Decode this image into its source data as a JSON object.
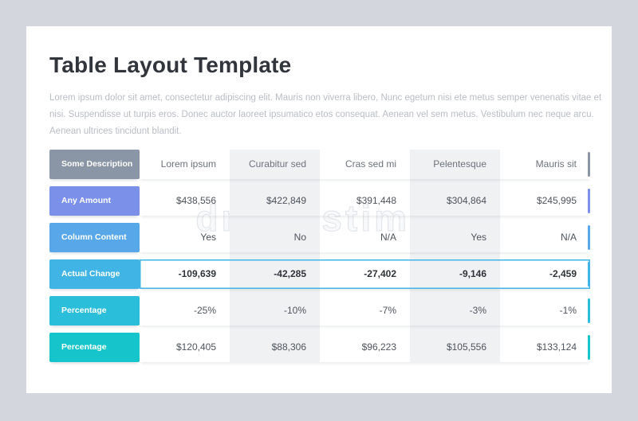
{
  "page": {
    "title": "Table Layout Template",
    "subtitle": "Lorem ipsum dolor sit amet, consectetur adipiscing elit. Mauris non viverra libero, Nunc egetum nisi ete metus semper venenatis vitae et nisi. Suspendisse ut turpis eros. Donec auctor laoreet ipsumatico etos consequat. Aenean vel sem metus. Vestibulum nec neque arcu. Aenean ultrices tincidunt blandit."
  },
  "watermark": {
    "text": "dreamstime",
    "registered": "®"
  },
  "colors": {
    "background": "#d3d6dd",
    "card": "#ffffff",
    "column_stripe": "#f0f1f3",
    "title_text": "#32363c",
    "subtitle_text": "#b9bdc4",
    "cell_text": "#4d535b"
  },
  "table": {
    "header": {
      "label": "Some Description",
      "color": "#8a95a5",
      "columns": [
        "Lorem ipsum",
        "Curabitur sed",
        "Cras sed mi",
        "Pelentesque",
        "Mauris sit"
      ]
    },
    "rows": [
      {
        "label": "Any Amount",
        "color": "#7b90e9",
        "highlight": false,
        "cells": [
          "$438,556",
          "$422,849",
          "$391,448",
          "$304,864",
          "$245,995"
        ]
      },
      {
        "label": "Column Content",
        "color": "#58a8e9",
        "highlight": false,
        "cells": [
          "Yes",
          "No",
          "N/A",
          "Yes",
          "N/A"
        ]
      },
      {
        "label": "Actual Change",
        "color": "#41b4e6",
        "highlight": true,
        "cells": [
          "-109,639",
          "-42,285",
          "-27,402",
          "-9,146",
          "-2,459"
        ]
      },
      {
        "label": "Percentage",
        "color": "#2bbeda",
        "highlight": false,
        "cells": [
          "-25%",
          "-10%",
          "-7%",
          "-3%",
          "-1%"
        ]
      },
      {
        "label": "Percentage",
        "color": "#16c5cb",
        "highlight": false,
        "cells": [
          "$120,405",
          "$88,306",
          "$96,223",
          "$105,556",
          "$133,124"
        ]
      }
    ]
  }
}
